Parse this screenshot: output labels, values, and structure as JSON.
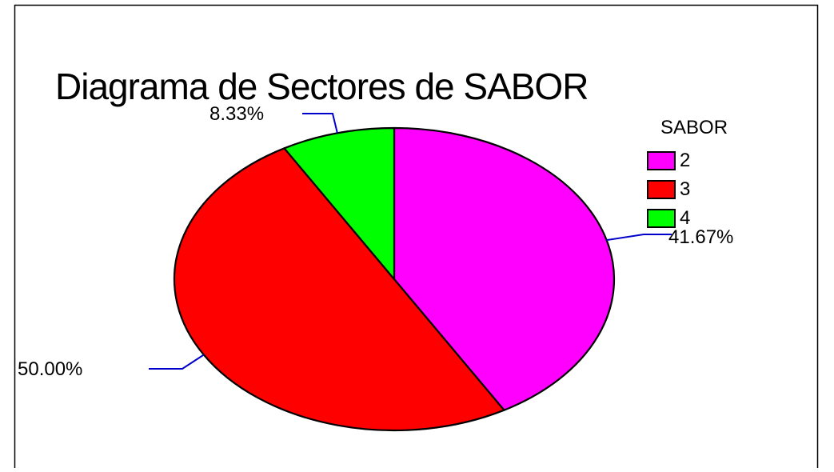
{
  "chart_data": {
    "type": "pie",
    "title": "Diagrama de Sectores de SABOR",
    "legend_title": "SABOR",
    "legend_position": "right",
    "slices": [
      {
        "category": "2",
        "value": 41.67,
        "label": "41.67%",
        "color": "#ff00ff"
      },
      {
        "category": "3",
        "value": 50.0,
        "label": "50.00%",
        "color": "#ff0000"
      },
      {
        "category": "4",
        "value": 8.33,
        "label": "8.33%",
        "color": "#00ff00"
      }
    ],
    "leader_line_color": "#0000cc"
  }
}
